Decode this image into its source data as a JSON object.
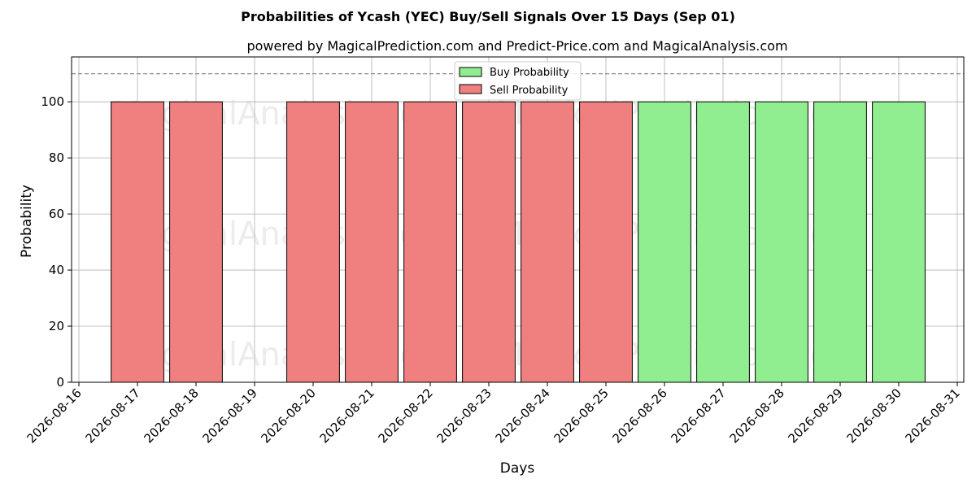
{
  "chart_data": {
    "type": "bar",
    "title": "Probabilities of Ycash (YEC) Buy/Sell Signals Over 15 Days (Sep 01)",
    "subtitle": "powered by MagicalPrediction.com and Predict-Price.com and MagicalAnalysis.com",
    "xlabel": "Days",
    "ylabel": "Probability",
    "ylim": [
      0,
      116
    ],
    "yticks": [
      0,
      20,
      40,
      60,
      80,
      100
    ],
    "reference_line": 110,
    "x_ticks": [
      "2026-08-16",
      "2026-08-17",
      "2026-08-18",
      "2026-08-19",
      "2026-08-20",
      "2026-08-21",
      "2026-08-22",
      "2026-08-23",
      "2026-08-24",
      "2026-08-25",
      "2026-08-26",
      "2026-08-27",
      "2026-08-28",
      "2026-08-29",
      "2026-08-30",
      "2026-08-31"
    ],
    "grid": true,
    "legend_position": "top-center",
    "series": [
      {
        "name": "Buy Probability",
        "color": "#90ee90",
        "points": [
          {
            "x": "2026-08-26",
            "y": 100
          },
          {
            "x": "2026-08-27",
            "y": 100
          },
          {
            "x": "2026-08-28",
            "y": 100
          },
          {
            "x": "2026-08-29",
            "y": 100
          },
          {
            "x": "2026-08-30",
            "y": 100
          }
        ]
      },
      {
        "name": "Sell Probability",
        "color": "#f08080",
        "points": [
          {
            "x": "2026-08-17",
            "y": 100
          },
          {
            "x": "2026-08-18",
            "y": 100
          },
          {
            "x": "2026-08-20",
            "y": 100
          },
          {
            "x": "2026-08-21",
            "y": 100
          },
          {
            "x": "2026-08-22",
            "y": 100
          },
          {
            "x": "2026-08-23",
            "y": 100
          },
          {
            "x": "2026-08-24",
            "y": 100
          },
          {
            "x": "2026-08-25",
            "y": 100
          }
        ]
      }
    ],
    "watermarks": [
      "MagicalAnalysis.com",
      "MagicalPrediction.com"
    ]
  }
}
